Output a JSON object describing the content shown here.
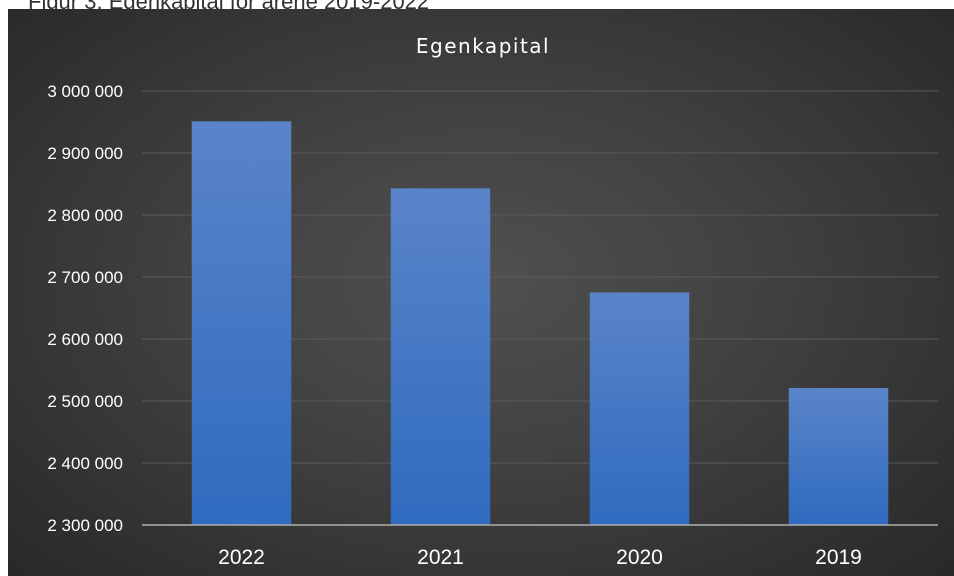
{
  "caption": "Figur 3. Egenkapital for årene 2019-2022",
  "colors": {
    "bar": "#4472C4",
    "gridline": "#5a5a5a",
    "axis": "#b0b0b0",
    "text": "#ffffff"
  },
  "chart_data": {
    "type": "bar",
    "title": "Egenkapital",
    "xlabel": "",
    "ylabel": "",
    "categories": [
      "2022",
      "2021",
      "2020",
      "2019"
    ],
    "values": [
      2951000,
      2843000,
      2675000,
      2521000
    ],
    "ylim": [
      2300000,
      3000000
    ],
    "yticks": [
      2300000,
      2400000,
      2500000,
      2600000,
      2700000,
      2800000,
      2900000,
      3000000
    ],
    "ytick_labels": [
      "2 300 000",
      "2 400 000",
      "2 500 000",
      "2 600 000",
      "2 700 000",
      "2 800 000",
      "2 900 000",
      "3 000 000"
    ],
    "grid": true,
    "legend": "none"
  }
}
